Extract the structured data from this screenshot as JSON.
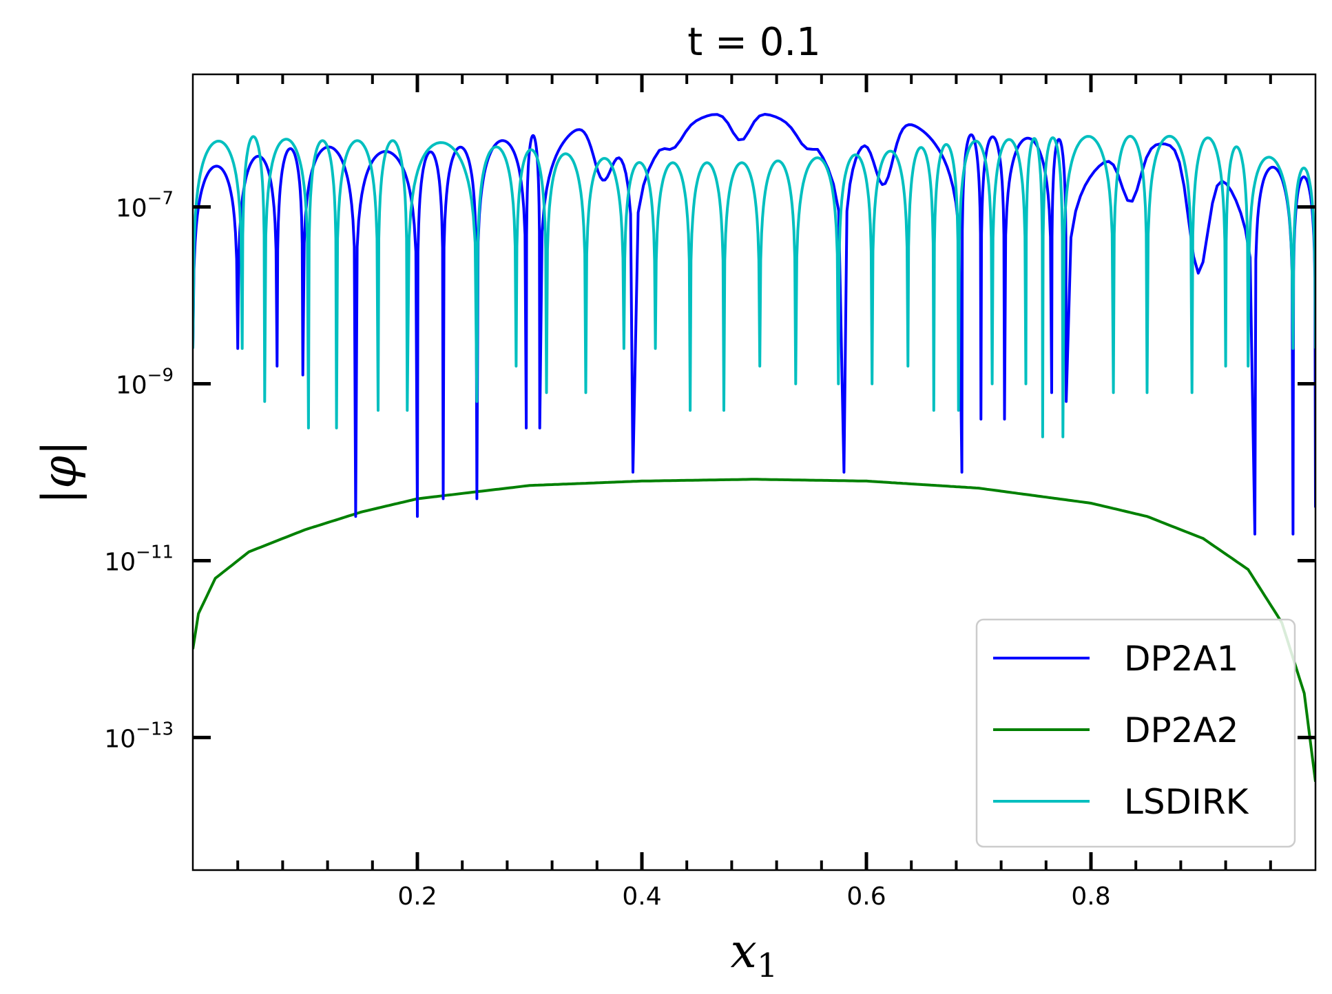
{
  "chart_data": {
    "type": "line",
    "title": "t = 0.1",
    "xlabel": "x_1",
    "ylabel": "|φ|",
    "xscale": "linear",
    "yscale": "log",
    "xlim": [
      0.0,
      1.0
    ],
    "ylim_exponent": [
      -14.5,
      -5.5
    ],
    "x_ticks": [
      0.2,
      0.4,
      0.6,
      0.8
    ],
    "x_tick_labels": [
      "0.2",
      "0.4",
      "0.6",
      "0.8"
    ],
    "y_ticks_exponent": [
      -7,
      -9,
      -11,
      -13
    ],
    "y_tick_labels": [
      {
        "base": "10",
        "exp": "−7"
      },
      {
        "base": "10",
        "exp": "−9"
      },
      {
        "base": "10",
        "exp": "−11"
      },
      {
        "base": "10",
        "exp": "−13"
      }
    ],
    "grid": false,
    "legend_position": "lower-right",
    "series": [
      {
        "name": "DP2A1",
        "color": "#0000ff",
        "pattern": "oscillating",
        "log10_envelope": [
          [
            0.0,
            -6.6
          ],
          [
            0.1,
            -6.3
          ],
          [
            0.2,
            -6.4
          ],
          [
            0.3,
            -6.2
          ],
          [
            0.4,
            -5.95
          ],
          [
            0.5,
            -5.9
          ],
          [
            0.6,
            -5.95
          ],
          [
            0.7,
            -6.2
          ],
          [
            0.8,
            -6.25
          ],
          [
            0.9,
            -6.3
          ],
          [
            1.0,
            -6.7
          ]
        ],
        "zero_crossings": [
          0.0,
          0.04,
          0.075,
          0.098,
          0.145,
          0.2,
          0.223,
          0.253,
          0.297,
          0.309,
          0.392,
          0.58,
          0.685,
          0.702,
          0.723,
          0.765,
          0.778,
          0.946,
          0.98,
          1.0
        ],
        "crossing_depth_log10": [
          -8.4,
          -8.6,
          -8.8,
          -8.9,
          -10.5,
          -8.9,
          -10.3,
          -9.1,
          -9.5,
          -9.1,
          -10.0,
          -10.0,
          -9.0,
          -9.4,
          -9.1,
          -9.1,
          -9.2,
          -10.7,
          -10.4,
          -8.4
        ],
        "shallow_dips": [
          [
            0.366,
            -6.7
          ],
          [
            0.425,
            -6.35
          ],
          [
            0.488,
            -6.25
          ],
          [
            0.55,
            -6.35
          ],
          [
            0.615,
            -6.75
          ],
          [
            0.835,
            -6.95
          ],
          [
            0.896,
            -7.75
          ]
        ]
      },
      {
        "name": "DP2A2",
        "color": "#008000",
        "pattern": "smooth",
        "log10_points": [
          [
            0.0,
            -12.0
          ],
          [
            0.005,
            -11.6
          ],
          [
            0.02,
            -11.2
          ],
          [
            0.05,
            -10.9
          ],
          [
            0.1,
            -10.65
          ],
          [
            0.15,
            -10.45
          ],
          [
            0.2,
            -10.3
          ],
          [
            0.3,
            -10.15
          ],
          [
            0.4,
            -10.1
          ],
          [
            0.5,
            -10.08
          ],
          [
            0.6,
            -10.1
          ],
          [
            0.7,
            -10.18
          ],
          [
            0.8,
            -10.35
          ],
          [
            0.85,
            -10.5
          ],
          [
            0.9,
            -10.75
          ],
          [
            0.94,
            -11.1
          ],
          [
            0.97,
            -11.7
          ],
          [
            0.99,
            -12.5
          ],
          [
            1.0,
            -13.5
          ]
        ]
      },
      {
        "name": "LSDIRK",
        "color": "#00bfbf",
        "pattern": "oscillating",
        "log10_envelope": [
          [
            0.0,
            -6.3
          ],
          [
            0.05,
            -6.2
          ],
          [
            0.1,
            -6.25
          ],
          [
            0.2,
            -6.25
          ],
          [
            0.3,
            -6.35
          ],
          [
            0.4,
            -6.5
          ],
          [
            0.5,
            -6.5
          ],
          [
            0.6,
            -6.4
          ],
          [
            0.7,
            -6.25
          ],
          [
            0.8,
            -6.2
          ],
          [
            0.9,
            -6.2
          ],
          [
            1.0,
            -6.6
          ]
        ],
        "zero_crossings": [
          0.0,
          0.044,
          0.064,
          0.103,
          0.128,
          0.165,
          0.191,
          0.253,
          0.288,
          0.315,
          0.35,
          0.384,
          0.412,
          0.443,
          0.473,
          0.505,
          0.537,
          0.575,
          0.605,
          0.637,
          0.66,
          0.682,
          0.712,
          0.742,
          0.757,
          0.775,
          0.82,
          0.85,
          0.89,
          0.92,
          0.94,
          0.98,
          1.0
        ],
        "crossing_depth_log10": [
          -8.0,
          -8.6,
          -9.2,
          -9.5,
          -9.0,
          -9.3,
          -9.2,
          -8.8,
          -8.5,
          -9.1,
          -8.4,
          -8.6,
          -8.6,
          -9.3,
          -8.5,
          -8.8,
          -9.0,
          -9.0,
          -8.6,
          -8.8,
          -9.3,
          -9.0,
          -8.6,
          -9.0,
          -9.6,
          -9.1,
          -8.8,
          -9.1,
          -8.5,
          -8.8,
          -8.6,
          -8.6,
          -8.0
        ]
      }
    ]
  }
}
